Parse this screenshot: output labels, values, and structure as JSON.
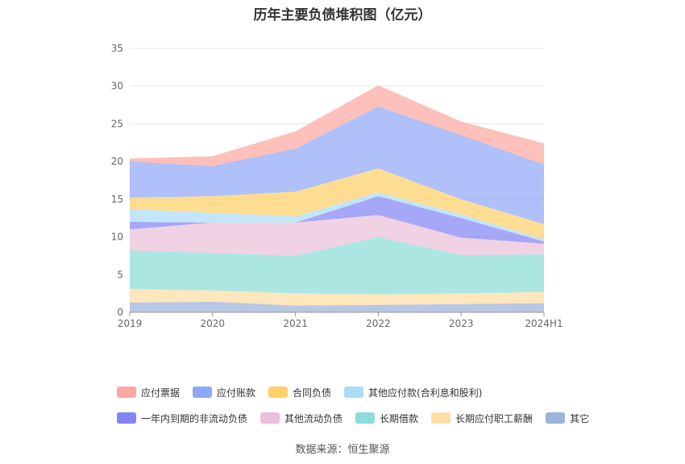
{
  "title": "历年主要负债堆积图（亿元）",
  "source_label": "数据来源：恒生聚源",
  "colors": {
    "应付票据": "#fca79f",
    "应付账款": "#90a8f8",
    "合同负债": "#fdd06a",
    "其他应付款(合利息和股利)": "#aadcf6",
    "一年内到期的非流动负债": "#8585f4",
    "其他流动负债": "#ecbfda",
    "长期借款": "#8cdcd8",
    "长期应付职工薪酬": "#fedda4",
    "其它": "#9cb3da"
  },
  "chart_data": {
    "type": "area",
    "stacked": true,
    "title": "历年主要负债堆积图（亿元）",
    "categories": [
      "2019",
      "2020",
      "2021",
      "2022",
      "2023",
      "2024H1"
    ],
    "ylim": [
      0,
      35
    ],
    "yticks": [
      0,
      5,
      10,
      15,
      20,
      25,
      30,
      35
    ],
    "grid": true,
    "legend_position": "bottom",
    "series": [
      {
        "name": "其它",
        "values": [
          1.3,
          1.4,
          0.9,
          1.0,
          1.1,
          1.2
        ]
      },
      {
        "name": "长期应付职工薪酬",
        "values": [
          1.8,
          1.5,
          1.6,
          1.4,
          1.4,
          1.5
        ]
      },
      {
        "name": "长期借款",
        "values": [
          5.1,
          5.0,
          5.0,
          7.6,
          5.1,
          5.0
        ]
      },
      {
        "name": "其他流动负债",
        "values": [
          2.8,
          4.0,
          4.4,
          2.9,
          2.3,
          1.4
        ]
      },
      {
        "name": "一年内到期的非流动负债",
        "values": [
          1.0,
          0.0,
          0.0,
          2.5,
          2.6,
          0.3
        ]
      },
      {
        "name": "其他应付款(合利息和股利)",
        "values": [
          1.7,
          1.3,
          0.8,
          0.5,
          0.5,
          0.3
        ]
      },
      {
        "name": "合同负债",
        "values": [
          1.5,
          2.2,
          3.3,
          3.2,
          2.0,
          2.0
        ]
      },
      {
        "name": "应付账款",
        "values": [
          4.8,
          4.0,
          5.7,
          8.2,
          8.5,
          7.9
        ]
      },
      {
        "name": "应付票据",
        "values": [
          0.4,
          1.3,
          2.3,
          2.8,
          1.8,
          2.8
        ]
      }
    ]
  },
  "legend": [
    [
      "应付票据",
      "应付账款",
      "合同负债",
      "其他应付款(合利息和股利)"
    ],
    [
      "一年内到期的非流动负债",
      "其他流动负债",
      "长期借款",
      "长期应付职工薪酬",
      "其它"
    ]
  ]
}
